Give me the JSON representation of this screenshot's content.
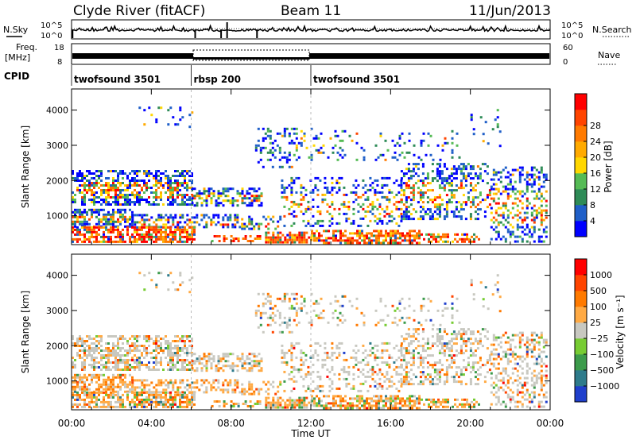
{
  "header": {
    "station": "Clyde River (fitACF)",
    "beam": "Beam 11",
    "date": "11/Jun/2013"
  },
  "noise_panel": {
    "left_label": "N.Sky",
    "right_label": "N.Search",
    "left_ticks": [
      "10^5",
      "10^0"
    ],
    "right_ticks": [
      "10^5",
      "10^0"
    ]
  },
  "freq_panel": {
    "left_label_1": "Freq.",
    "left_label_2": "[MHz]",
    "right_label": "Nave",
    "left_ticks": [
      "18",
      "8"
    ],
    "right_ticks": [
      "60",
      "0"
    ]
  },
  "cpid": {
    "label": "CPID",
    "segments": [
      {
        "name": "twofsound 3501",
        "start": 0,
        "end": 6
      },
      {
        "name": "rbsp 200",
        "start": 6,
        "end": 12
      },
      {
        "name": "twofsound 3501",
        "start": 12,
        "end": 24
      }
    ]
  },
  "chart_data": [
    {
      "type": "heatmap",
      "title": "",
      "xlabel": "",
      "ylabel": "Slant Range [km]",
      "xlim": [
        0,
        24
      ],
      "ylim": [
        180,
        4600
      ],
      "y_ticks": [
        1000,
        2000,
        3000,
        4000
      ],
      "colorbar": {
        "label": "Power [dB]",
        "ticks": [
          "4",
          "8",
          "12",
          "16",
          "20",
          "24",
          "28"
        ],
        "colors": [
          "#0000ff",
          "#1f5fc8",
          "#2e8b57",
          "#55bb55",
          "#ffd700",
          "#ffaa00",
          "#ff7a00",
          "#ff4400",
          "#ff0000"
        ]
      }
    },
    {
      "type": "heatmap",
      "title": "",
      "xlabel": "Time UT",
      "ylabel": "Slant Range [km]",
      "xlim": [
        0,
        24
      ],
      "ylim": [
        180,
        4600
      ],
      "y_ticks": [
        1000,
        2000,
        3000,
        4000
      ],
      "x_ticks": [
        "00:00",
        "04:00",
        "08:00",
        "12:00",
        "16:00",
        "20:00",
        "00:00"
      ],
      "colorbar": {
        "label": "Velocity [m s⁻¹]",
        "ticks": [
          "1000",
          "500",
          "100",
          "25",
          "−25",
          "−100",
          "−500",
          "−1000"
        ],
        "colors": [
          "#1f3fcc",
          "#2e7b8b",
          "#3c9b4b",
          "#77cc33",
          "#c8c8c0",
          "#ffaa44",
          "#ff7a00",
          "#ff4400",
          "#ff0000"
        ]
      }
    }
  ]
}
